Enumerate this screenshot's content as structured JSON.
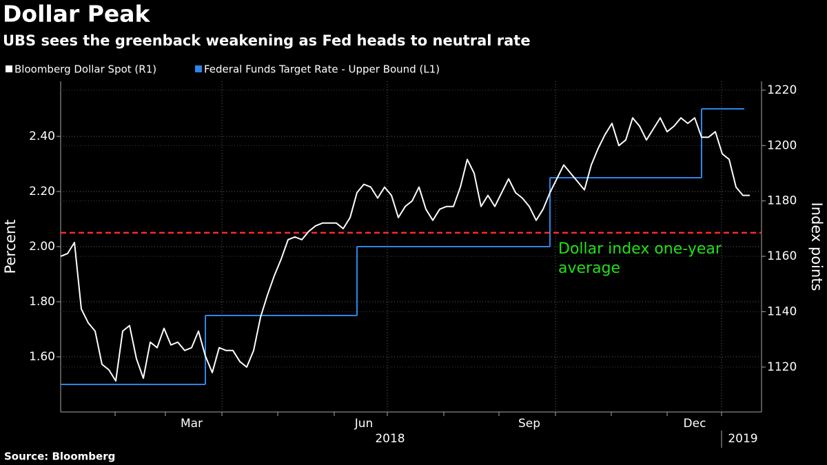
{
  "chart_data": {
    "type": "line",
    "title": "Dollar Peak",
    "subtitle": "UBS sees the greenback weakening as Fed heads to neutral rate",
    "source": "Source: Bloomberg",
    "ylabel": "Percent",
    "y2label": "Index points",
    "ylim": [
      1.4,
      2.6
    ],
    "yticks": [
      {
        "value": 1.6,
        "label": "1.60"
      },
      {
        "value": 1.8,
        "label": "1.80"
      },
      {
        "value": 2.0,
        "label": "2.00"
      },
      {
        "value": 2.2,
        "label": "2.20"
      },
      {
        "value": 2.4,
        "label": "2.40"
      }
    ],
    "y2lim": [
      1103.8,
      1223.2
    ],
    "y2ticks": [
      1120,
      1140,
      1160,
      1180,
      1200,
      1220
    ],
    "grid": true,
    "year_labels": [
      "2018",
      "2019"
    ],
    "categories": [
      null,
      null,
      null,
      null,
      null,
      null,
      null,
      null,
      null,
      null,
      null,
      null,
      null,
      null,
      null,
      null,
      null,
      null,
      null,
      "Mar",
      null,
      null,
      null,
      null,
      null,
      null,
      null,
      null,
      null,
      null,
      null,
      null,
      null,
      null,
      null,
      null,
      null,
      null,
      null,
      null,
      null,
      null,
      null,
      null,
      "Jun",
      null,
      null,
      null,
      null,
      null,
      null,
      null,
      null,
      null,
      null,
      null,
      null,
      null,
      null,
      null,
      null,
      null,
      null,
      null,
      null,
      null,
      null,
      null,
      "Sep",
      null,
      null,
      null,
      null,
      null,
      null,
      null,
      null,
      null,
      null,
      null,
      null,
      null,
      null,
      null,
      null,
      null,
      null,
      null,
      null,
      null,
      null,
      null,
      "Dec",
      null,
      null,
      null,
      null,
      null,
      null,
      null,
      null
    ],
    "series": [
      {
        "name": "Bloomberg Dollar Spot  (R1)",
        "color": "#ffffff",
        "axis": "y2",
        "values": [
          1160,
          1161,
          1165,
          1141,
          1136,
          1133,
          1121,
          1119,
          1115,
          1133,
          1135,
          1123,
          1116,
          1129,
          1127,
          1134,
          1128,
          1129,
          1126,
          1127,
          1133,
          1124,
          1118,
          1127,
          1126,
          1126,
          1122,
          1120,
          1126,
          1138,
          1146,
          1153,
          1159,
          1166,
          1167,
          1166,
          1169,
          1171,
          1172,
          1172,
          1172,
          1170,
          1174,
          1183,
          1186,
          1185,
          1181,
          1185,
          1182,
          1174,
          1178,
          1180,
          1185,
          1177,
          1173,
          1177,
          1178,
          1178,
          1185,
          1195,
          1190,
          1178,
          1182,
          1178,
          1183,
          1188,
          1183,
          1181,
          1178,
          1173,
          1177,
          1183,
          1188,
          1193,
          1190,
          1187,
          1184,
          1193,
          1199,
          1204,
          1208,
          1200,
          1202,
          1210,
          1207,
          1202,
          1206,
          1210,
          1205,
          1207,
          1210,
          1208,
          1210,
          1203,
          1203,
          1205,
          1197,
          1195,
          1185,
          1182,
          1182
        ]
      },
      {
        "name": "Federal Funds Target Rate - Upper Bound  (L1)",
        "color": "#2e86e8",
        "axis": "y",
        "values": [
          1.5,
          1.5,
          1.5,
          1.5,
          1.5,
          1.5,
          1.5,
          1.5,
          1.5,
          1.5,
          1.5,
          1.5,
          1.5,
          1.5,
          1.5,
          1.5,
          1.5,
          1.5,
          1.5,
          1.5,
          1.5,
          1.75,
          1.75,
          1.75,
          1.75,
          1.75,
          1.75,
          1.75,
          1.75,
          1.75,
          1.75,
          1.75,
          1.75,
          1.75,
          1.75,
          1.75,
          1.75,
          1.75,
          1.75,
          1.75,
          1.75,
          1.75,
          1.75,
          2.0,
          2.0,
          2.0,
          2.0,
          2.0,
          2.0,
          2.0,
          2.0,
          2.0,
          2.0,
          2.0,
          2.0,
          2.0,
          2.0,
          2.0,
          2.0,
          2.0,
          2.0,
          2.0,
          2.0,
          2.0,
          2.0,
          2.0,
          2.0,
          2.0,
          2.0,
          2.0,
          2.0,
          2.25,
          2.25,
          2.25,
          2.25,
          2.25,
          2.25,
          2.25,
          2.25,
          2.25,
          2.25,
          2.25,
          2.25,
          2.25,
          2.25,
          2.25,
          2.25,
          2.25,
          2.25,
          2.25,
          2.25,
          2.25,
          2.25,
          2.5,
          2.5,
          2.5,
          2.5,
          2.5,
          2.5,
          2.5,
          null
        ]
      }
    ],
    "reference_line": {
      "value": 1168.5,
      "axis": "y2",
      "color": "#ff2a2a",
      "label": "Dollar index one-year average",
      "label_color": "#22e01a"
    }
  }
}
